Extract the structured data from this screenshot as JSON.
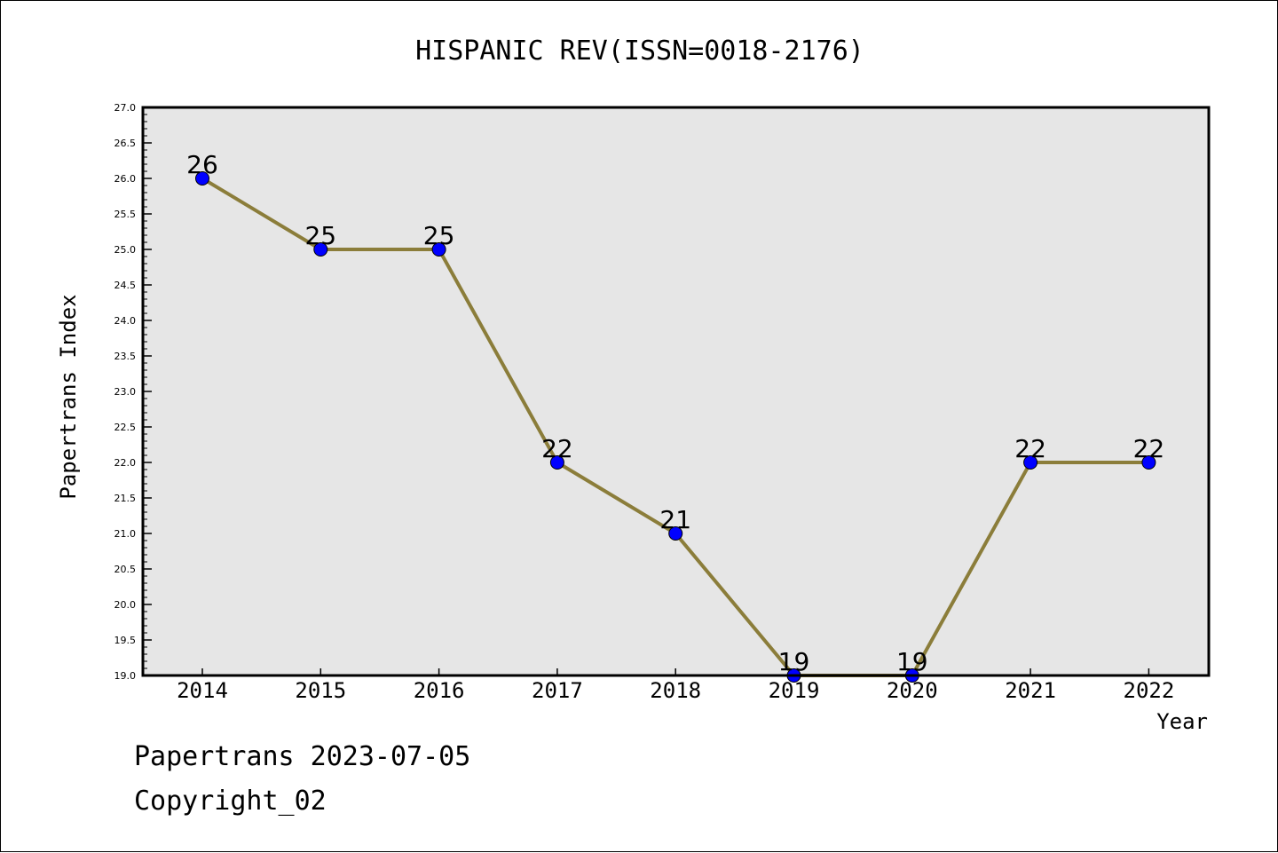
{
  "chart_data": {
    "type": "line",
    "title": "HISPANIC REV(ISSN=0018-2176)",
    "xlabel": "Year",
    "ylabel": "Papertrans Index",
    "x": [
      "2014",
      "2015",
      "2016",
      "2017",
      "2018",
      "2019",
      "2020",
      "2021",
      "2022"
    ],
    "values": [
      26,
      25,
      25,
      22,
      21,
      19,
      19,
      22,
      22
    ],
    "data_labels": [
      "26",
      "25",
      "25",
      "22",
      "21",
      "19",
      "19",
      "22",
      "22"
    ],
    "ylim": [
      19.0,
      27.0
    ],
    "yticks": [
      "19.0",
      "19.5",
      "20.0",
      "20.5",
      "21.0",
      "21.5",
      "22.0",
      "22.5",
      "23.0",
      "23.5",
      "24.0",
      "24.5",
      "25.0",
      "25.5",
      "26.0",
      "26.5",
      "27.0"
    ],
    "grid": false,
    "line_color": "#8b7d3a",
    "marker_color": "#0000ff",
    "plot_background": "#e6e6e6"
  },
  "footer": {
    "source": "Papertrans 2023-07-05",
    "copyright": "Copyright_02"
  }
}
